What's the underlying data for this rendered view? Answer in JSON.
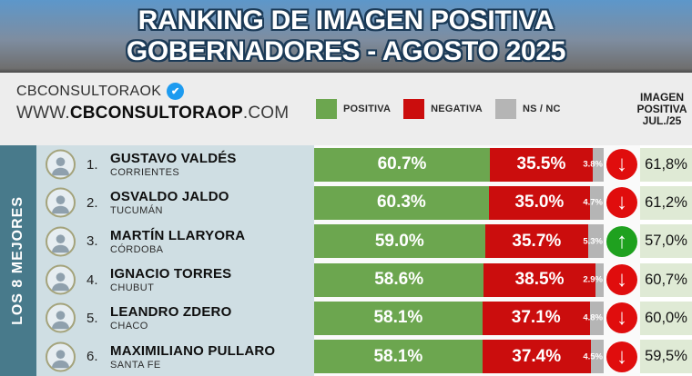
{
  "title": {
    "line1": "RANKING DE IMAGEN POSITIVA",
    "line2": "GOBERNADORES - AGOSTO 2025"
  },
  "source": {
    "handle": "CBCONSULTORAOK",
    "verified_icon": "verified-badge",
    "url_prefix": "WWW.",
    "url_domain": "CBCONSULTORAOP",
    "url_suffix": ".COM"
  },
  "legend": [
    {
      "label": "POSITIVA",
      "color": "#6ca64f"
    },
    {
      "label": "NEGATIVA",
      "color": "#cb0d0d"
    },
    {
      "label": "NS / NC",
      "color": "#b5b5b5"
    }
  ],
  "prev_header": {
    "line1": "IMAGEN",
    "line2": "POSITIVA",
    "line3": "JUL./25"
  },
  "sidebar": {
    "label": "LOS 8 MEJORES"
  },
  "colors": {
    "positiva": "#6ca64f",
    "negativa": "#cb0d0d",
    "nsnc": "#b5b5b5",
    "sidebar": "#487a8b",
    "name_panel": "#cfdee3",
    "prev_cell": "#dfead5",
    "arrow_down": "#e00d0d",
    "arrow_up": "#1fa11f",
    "badge_blue": "#1d9bf0"
  },
  "rows": [
    {
      "rank": "1.",
      "name": "GUSTAVO VALDÉS",
      "region": "CORRIENTES",
      "positiva": 60.7,
      "positiva_label": "60.7%",
      "negativa": 35.5,
      "negativa_label": "35.5%",
      "nsnc": 3.8,
      "nsnc_label": "3.8%",
      "trend": "down",
      "prev_label": "61,8%"
    },
    {
      "rank": "2.",
      "name": "OSVALDO JALDO",
      "region": "TUCUMÁN",
      "positiva": 60.3,
      "positiva_label": "60.3%",
      "negativa": 35.0,
      "negativa_label": "35.0%",
      "nsnc": 4.7,
      "nsnc_label": "4.7%",
      "trend": "down",
      "prev_label": "61,2%"
    },
    {
      "rank": "3.",
      "name": "MARTÍN LLARYORA",
      "region": "CÓRDOBA",
      "positiva": 59.0,
      "positiva_label": "59.0%",
      "negativa": 35.7,
      "negativa_label": "35.7%",
      "nsnc": 5.3,
      "nsnc_label": "5.3%",
      "trend": "up",
      "prev_label": "57,0%"
    },
    {
      "rank": "4.",
      "name": "IGNACIO TORRES",
      "region": "CHUBUT",
      "positiva": 58.6,
      "positiva_label": "58.6%",
      "negativa": 38.5,
      "negativa_label": "38.5%",
      "nsnc": 2.9,
      "nsnc_label": "2.9%",
      "trend": "down",
      "prev_label": "60,7%"
    },
    {
      "rank": "5.",
      "name": "LEANDRO ZDERO",
      "region": "CHACO",
      "positiva": 58.1,
      "positiva_label": "58.1%",
      "negativa": 37.1,
      "negativa_label": "37.1%",
      "nsnc": 4.8,
      "nsnc_label": "4.8%",
      "trend": "down",
      "prev_label": "60,0%"
    },
    {
      "rank": "6.",
      "name": "MAXIMILIANO PULLARO",
      "region": "SANTA FE",
      "positiva": 58.1,
      "positiva_label": "58.1%",
      "negativa": 37.4,
      "negativa_label": "37.4%",
      "nsnc": 4.5,
      "nsnc_label": "4.5%",
      "trend": "down",
      "prev_label": "59,5%"
    }
  ],
  "chart_data": {
    "type": "bar",
    "orientation": "horizontal",
    "stacked": true,
    "title": "RANKING DE IMAGEN POSITIVA GOBERNADORES - AGOSTO 2025",
    "categories": [
      "GUSTAVO VALDÉS (CORRIENTES)",
      "OSVALDO JALDO (TUCUMÁN)",
      "MARTÍN LLARYORA (CÓRDOBA)",
      "IGNACIO TORRES (CHUBUT)",
      "LEANDRO ZDERO (CHACO)",
      "MAXIMILIANO PULLARO (SANTA FE)"
    ],
    "series": [
      {
        "name": "POSITIVA",
        "color": "#6ca64f",
        "values": [
          60.7,
          60.3,
          59.0,
          58.6,
          58.1,
          58.1
        ]
      },
      {
        "name": "NEGATIVA",
        "color": "#cb0d0d",
        "values": [
          35.5,
          35.0,
          35.7,
          38.5,
          37.1,
          37.4
        ]
      },
      {
        "name": "NS / NC",
        "color": "#b5b5b5",
        "values": [
          3.8,
          4.7,
          5.3,
          2.9,
          4.8,
          4.5
        ]
      }
    ],
    "extra_column": {
      "label": "IMAGEN POSITIVA JUL./25",
      "values": [
        61.8,
        61.2,
        57.0,
        60.7,
        60.0,
        59.5
      ]
    },
    "trend_vs_previous": [
      "down",
      "down",
      "up",
      "down",
      "down",
      "down"
    ],
    "xlim": [
      0,
      100
    ],
    "legend_position": "top",
    "grid": false
  }
}
